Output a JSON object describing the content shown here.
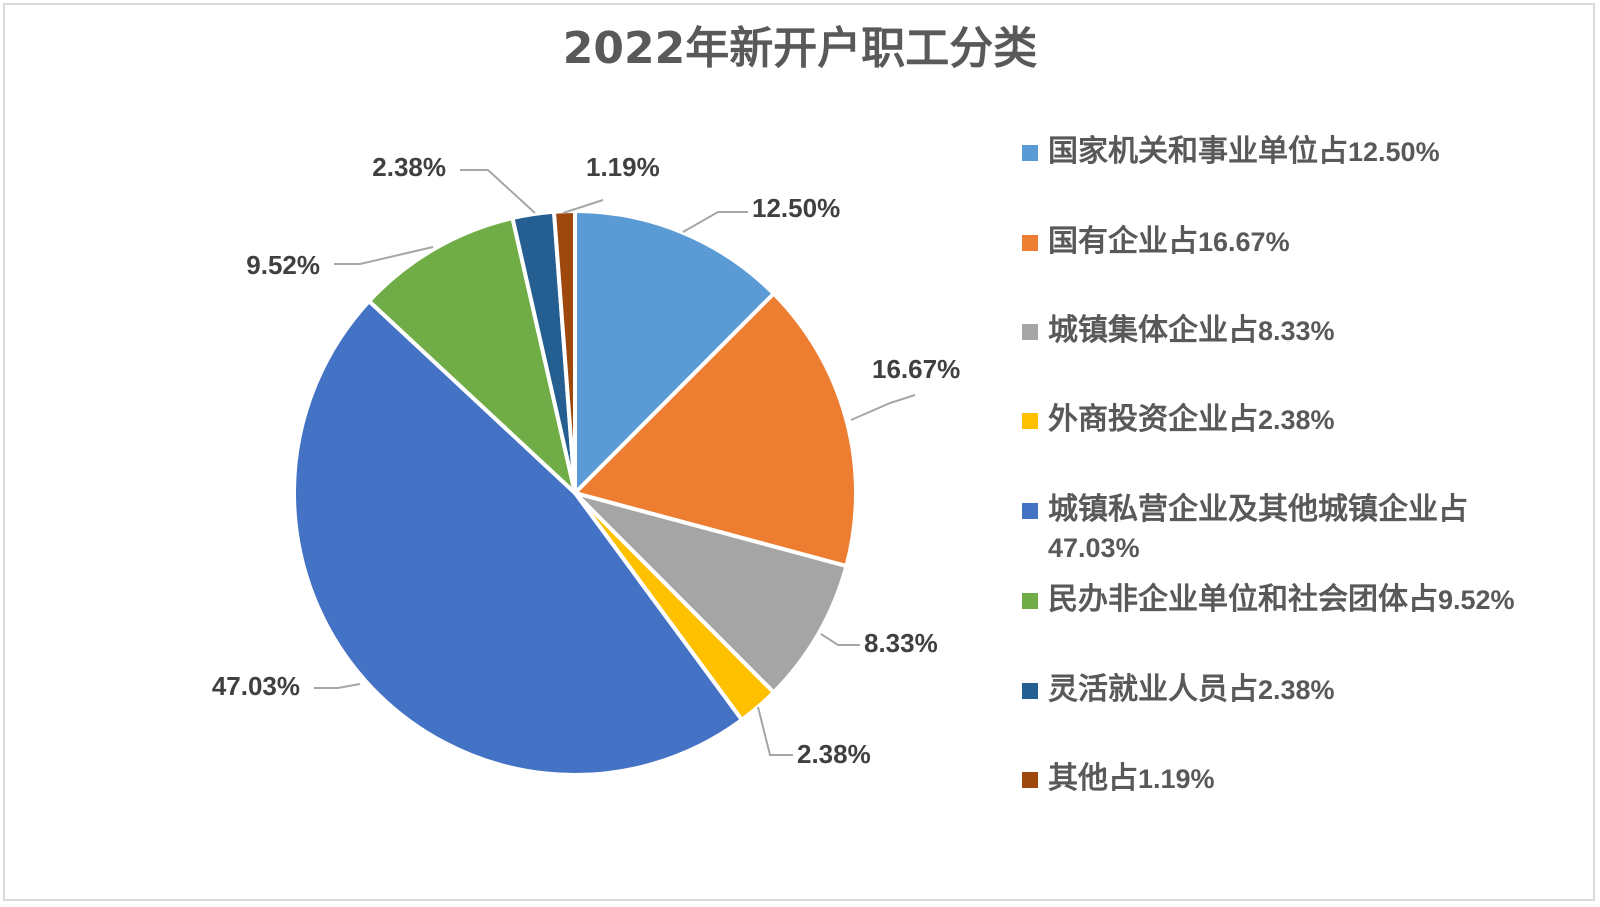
{
  "chart_data": {
    "type": "pie",
    "title": "2022年新开户职工分类",
    "start_angle_deg": 0,
    "direction": "clockwise",
    "legend_position": "right",
    "categories": [
      "国家机关和事业单位占12.50%",
      "国有企业占16.67%",
      "城镇集体企业占8.33%",
      "外商投资企业占2.38%",
      "城镇私营企业及其他城镇企业占47.03%",
      "民办非企业单位和社会团体占9.52%",
      "灵活就业人员占2.38%",
      "其他占1.19%"
    ],
    "values": [
      12.5,
      16.67,
      8.33,
      2.38,
      47.03,
      9.52,
      2.38,
      1.19
    ],
    "data_labels": [
      "12.50%",
      "16.67%",
      "8.33%",
      "2.38%",
      "47.03%",
      "9.52%",
      "2.38%",
      "1.19%"
    ],
    "colors": [
      "#5b9bd5",
      "#ed7d31",
      "#a5a5a5",
      "#ffc000",
      "#4472c4",
      "#70ad47",
      "#255e91",
      "#9e480e"
    ]
  },
  "title": "2022年新开户职工分类",
  "legend": [
    {
      "name": "国家机关和事业单位占",
      "pct": "12.50%",
      "color": "#5b9bd5"
    },
    {
      "name": "国有企业占",
      "pct": "16.67%",
      "color": "#ed7d31"
    },
    {
      "name": "城镇集体企业占",
      "pct": "8.33%",
      "color": "#a5a5a5"
    },
    {
      "name": "外商投资企业占",
      "pct": "2.38%",
      "color": "#ffc000"
    },
    {
      "name": "城镇私营企业及其他城镇企业占",
      "pct": "47.03%",
      "color": "#4472c4"
    },
    {
      "name": "民办非企业单位和社会团体占",
      "pct": "9.52%",
      "color": "#70ad47"
    },
    {
      "name": "灵活就业人员占",
      "pct": "2.38%",
      "color": "#255e91"
    },
    {
      "name": "其他占",
      "pct": "1.19%",
      "color": "#9e480e"
    }
  ]
}
